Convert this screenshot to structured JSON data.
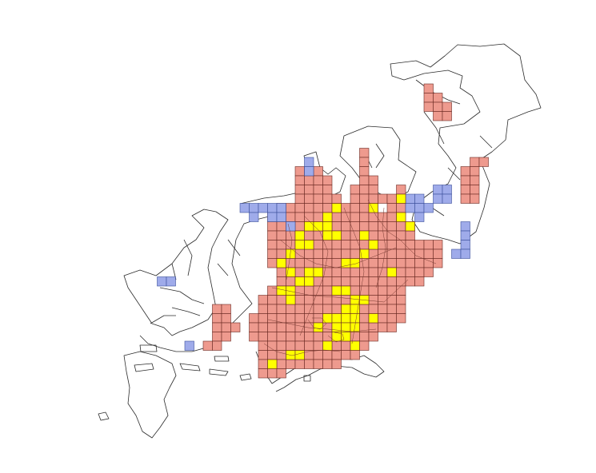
{
  "map": {
    "colors": {
      "background": "#ffffff",
      "outline": "#2b2b2b",
      "cell_red": "#ee9a8e",
      "cell_yellow": "#ffff00",
      "cell_blue": "#9fabea"
    },
    "legend": []
  }
}
